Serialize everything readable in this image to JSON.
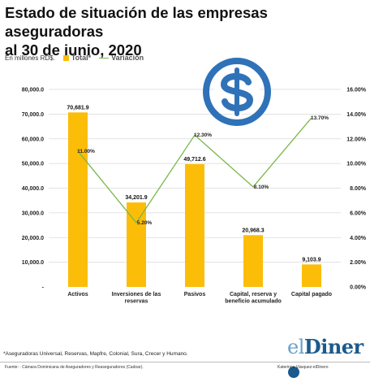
{
  "header": {
    "title_line1": "Estado de situación de las empresas aseguradoras",
    "title_line2": "al 30 de junio, 2020"
  },
  "units_note": "En millones RD$.",
  "legend": {
    "bar": "Total*",
    "line": "Variación"
  },
  "colors": {
    "bar": "#fbbd08",
    "line": "#7ab648",
    "icon": "#2f72b8"
  },
  "icon": "dollar-coin-icon",
  "chart_data": {
    "type": "bar",
    "categories": [
      "Activos",
      "Inversiones de las reservas",
      "Pasivos",
      "Capital, reserva y beneficio acumulado",
      "Capital pagado"
    ],
    "category_lines": [
      [
        "Activos"
      ],
      [
        "Inversiones de las",
        "reservas"
      ],
      [
        "Pasivos"
      ],
      [
        "Capital, reserva y",
        "beneficio acumulado"
      ],
      [
        "Capital pagado"
      ]
    ],
    "series": [
      {
        "name": "Total*",
        "type": "bar",
        "axis": "left",
        "values": [
          70681.9,
          34201.9,
          49712.6,
          20968.3,
          9103.9
        ],
        "labels": [
          "70,681.9",
          "34,201.9",
          "49,712.6",
          "20,968.3",
          "9,103.9"
        ]
      },
      {
        "name": "Variación",
        "type": "line",
        "axis": "right",
        "values": [
          11.0,
          5.2,
          12.3,
          8.1,
          13.7
        ],
        "labels": [
          "11.00%",
          "5.20%",
          "12.30%",
          "8.10%",
          "13.70%"
        ]
      }
    ],
    "ylim": [
      0,
      80000
    ],
    "yticks": [
      "-",
      "10,000.0",
      "20,000.0",
      "30,000.0",
      "40,000.0",
      "50,000.0",
      "60,000.0",
      "70,000.0",
      "80,000.0"
    ],
    "y2lim": [
      0,
      16
    ],
    "y2ticks": [
      "0.00%",
      "2.00%",
      "4.00%",
      "6.00%",
      "8.00%",
      "10.00%",
      "12.00%",
      "14.00%",
      "16.00%"
    ]
  },
  "footnote": "*Aseguradoras Universal, Reservas, Mapfre, Colonial, Sura, Crecer y Humano.",
  "source": "Fuente: : Cámara Dominicana de Aseguradores y Reaseguradores (Cadoar).",
  "author": "Katerinne Vásquez-elDinero",
  "brand": {
    "prefix": "el",
    "main": "Diner"
  }
}
